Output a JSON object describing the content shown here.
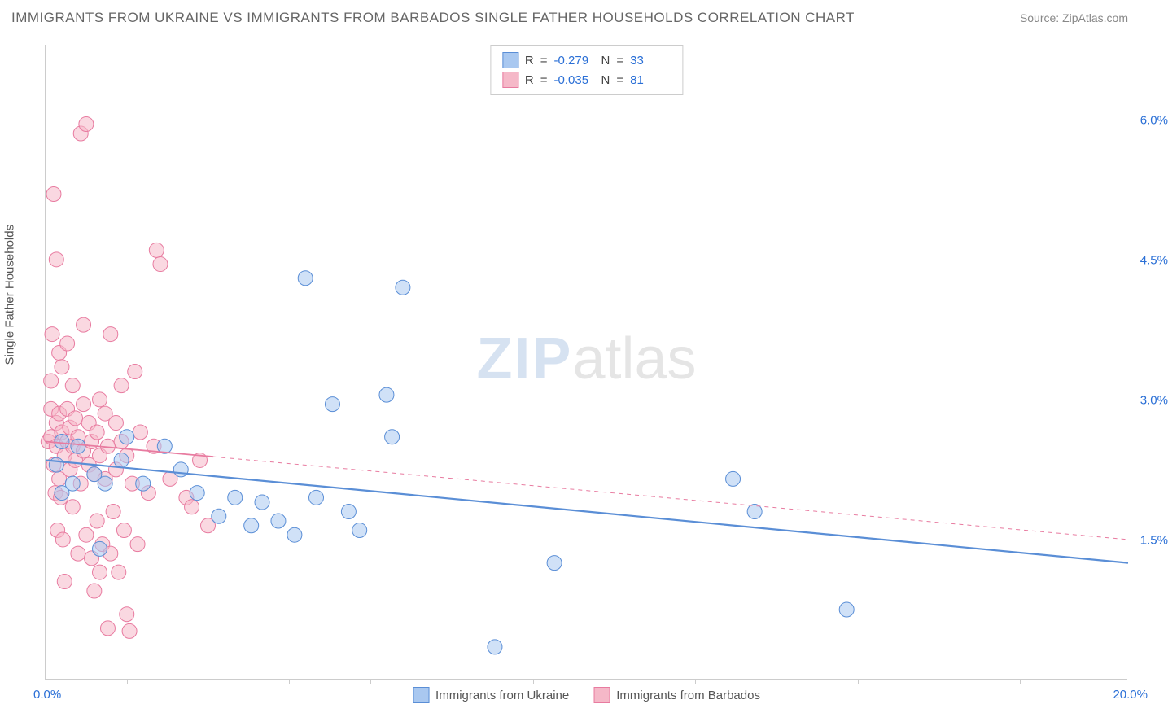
{
  "title": "IMMIGRANTS FROM UKRAINE VS IMMIGRANTS FROM BARBADOS SINGLE FATHER HOUSEHOLDS CORRELATION CHART",
  "source": "Source: ZipAtlas.com",
  "y_axis_label": "Single Father Households",
  "watermark_zip": "ZIP",
  "watermark_atlas": "atlas",
  "chart": {
    "type": "scatter",
    "xlim": [
      0,
      20
    ],
    "ylim": [
      0,
      6.8
    ],
    "x_tick_positions": [
      1.5,
      4.5,
      6.0,
      9.0,
      12.0,
      15.0,
      18.0
    ],
    "x_min_label": "0.0%",
    "x_max_label": "20.0%",
    "y_ticks": [
      1.5,
      3.0,
      4.5,
      6.0
    ],
    "y_tick_labels": [
      "1.5%",
      "3.0%",
      "4.5%",
      "6.0%"
    ],
    "grid_color": "#dddddd",
    "background_color": "#ffffff",
    "marker_radius": 9,
    "marker_opacity": 0.55,
    "series_a": {
      "name": "Immigrants from Ukraine",
      "color_fill": "#a9c8f0",
      "color_stroke": "#5a8ed6",
      "R": "-0.279",
      "N": "33",
      "points": [
        [
          0.2,
          2.3
        ],
        [
          0.3,
          2.0
        ],
        [
          0.3,
          2.55
        ],
        [
          0.5,
          2.1
        ],
        [
          0.6,
          2.5
        ],
        [
          0.9,
          2.2
        ],
        [
          1.0,
          1.4
        ],
        [
          1.1,
          2.1
        ],
        [
          1.4,
          2.35
        ],
        [
          1.5,
          2.6
        ],
        [
          1.8,
          2.1
        ],
        [
          2.2,
          2.5
        ],
        [
          2.5,
          2.25
        ],
        [
          2.8,
          2.0
        ],
        [
          3.2,
          1.75
        ],
        [
          3.5,
          1.95
        ],
        [
          3.8,
          1.65
        ],
        [
          4.0,
          1.9
        ],
        [
          4.3,
          1.7
        ],
        [
          4.6,
          1.55
        ],
        [
          4.8,
          4.3
        ],
        [
          5.0,
          1.95
        ],
        [
          5.3,
          2.95
        ],
        [
          5.6,
          1.8
        ],
        [
          5.8,
          1.6
        ],
        [
          6.3,
          3.05
        ],
        [
          6.4,
          2.6
        ],
        [
          6.6,
          4.2
        ],
        [
          8.3,
          0.35
        ],
        [
          9.4,
          1.25
        ],
        [
          12.7,
          2.15
        ],
        [
          13.1,
          1.8
        ],
        [
          14.8,
          0.75
        ]
      ],
      "trend": {
        "x1": 0,
        "y1": 2.35,
        "x2": 20,
        "y2": 1.25,
        "dashed_from_x": null,
        "stroke_width": 2.2
      }
    },
    "series_b": {
      "name": "Immigrants from Barbados",
      "color_fill": "#f5b8c8",
      "color_stroke": "#e87ba0",
      "R": "-0.035",
      "N": "81",
      "points": [
        [
          0.05,
          2.55
        ],
        [
          0.1,
          2.6
        ],
        [
          0.1,
          2.9
        ],
        [
          0.1,
          3.2
        ],
        [
          0.12,
          3.7
        ],
        [
          0.15,
          5.2
        ],
        [
          0.15,
          2.3
        ],
        [
          0.18,
          2.0
        ],
        [
          0.2,
          2.75
        ],
        [
          0.2,
          2.5
        ],
        [
          0.2,
          4.5
        ],
        [
          0.22,
          1.6
        ],
        [
          0.25,
          2.15
        ],
        [
          0.25,
          2.85
        ],
        [
          0.25,
          3.5
        ],
        [
          0.28,
          1.95
        ],
        [
          0.3,
          2.65
        ],
        [
          0.3,
          3.35
        ],
        [
          0.32,
          1.5
        ],
        [
          0.35,
          2.4
        ],
        [
          0.35,
          1.05
        ],
        [
          0.4,
          2.55
        ],
        [
          0.4,
          2.9
        ],
        [
          0.4,
          3.6
        ],
        [
          0.45,
          2.25
        ],
        [
          0.45,
          2.7
        ],
        [
          0.5,
          1.85
        ],
        [
          0.5,
          2.5
        ],
        [
          0.5,
          3.15
        ],
        [
          0.55,
          2.35
        ],
        [
          0.55,
          2.8
        ],
        [
          0.6,
          1.35
        ],
        [
          0.6,
          2.6
        ],
        [
          0.65,
          5.85
        ],
        [
          0.65,
          2.1
        ],
        [
          0.7,
          2.45
        ],
        [
          0.7,
          2.95
        ],
        [
          0.7,
          3.8
        ],
        [
          0.75,
          1.55
        ],
        [
          0.75,
          5.95
        ],
        [
          0.8,
          2.3
        ],
        [
          0.8,
          2.75
        ],
        [
          0.85,
          1.3
        ],
        [
          0.85,
          2.55
        ],
        [
          0.9,
          0.95
        ],
        [
          0.9,
          2.2
        ],
        [
          0.95,
          1.7
        ],
        [
          0.95,
          2.65
        ],
        [
          1.0,
          1.15
        ],
        [
          1.0,
          2.4
        ],
        [
          1.0,
          3.0
        ],
        [
          1.05,
          1.45
        ],
        [
          1.1,
          2.15
        ],
        [
          1.1,
          2.85
        ],
        [
          1.15,
          0.55
        ],
        [
          1.15,
          2.5
        ],
        [
          1.2,
          1.35
        ],
        [
          1.2,
          3.7
        ],
        [
          1.25,
          1.8
        ],
        [
          1.3,
          2.25
        ],
        [
          1.3,
          2.75
        ],
        [
          1.35,
          1.15
        ],
        [
          1.4,
          2.55
        ],
        [
          1.4,
          3.15
        ],
        [
          1.45,
          1.6
        ],
        [
          1.5,
          0.7
        ],
        [
          1.5,
          2.4
        ],
        [
          1.55,
          0.52
        ],
        [
          1.6,
          2.1
        ],
        [
          1.65,
          3.3
        ],
        [
          1.7,
          1.45
        ],
        [
          1.75,
          2.65
        ],
        [
          1.9,
          2.0
        ],
        [
          2.0,
          2.5
        ],
        [
          2.05,
          4.6
        ],
        [
          2.12,
          4.45
        ],
        [
          2.3,
          2.15
        ],
        [
          2.6,
          1.95
        ],
        [
          2.7,
          1.85
        ],
        [
          2.85,
          2.35
        ],
        [
          3.0,
          1.65
        ]
      ],
      "trend": {
        "x1": 0,
        "y1": 2.55,
        "x2": 20,
        "y2": 1.5,
        "dashed_from_x": 3.1,
        "stroke_width": 1.8
      }
    }
  },
  "legend": {
    "r_label": "R",
    "n_label": "N",
    "eq": "="
  }
}
